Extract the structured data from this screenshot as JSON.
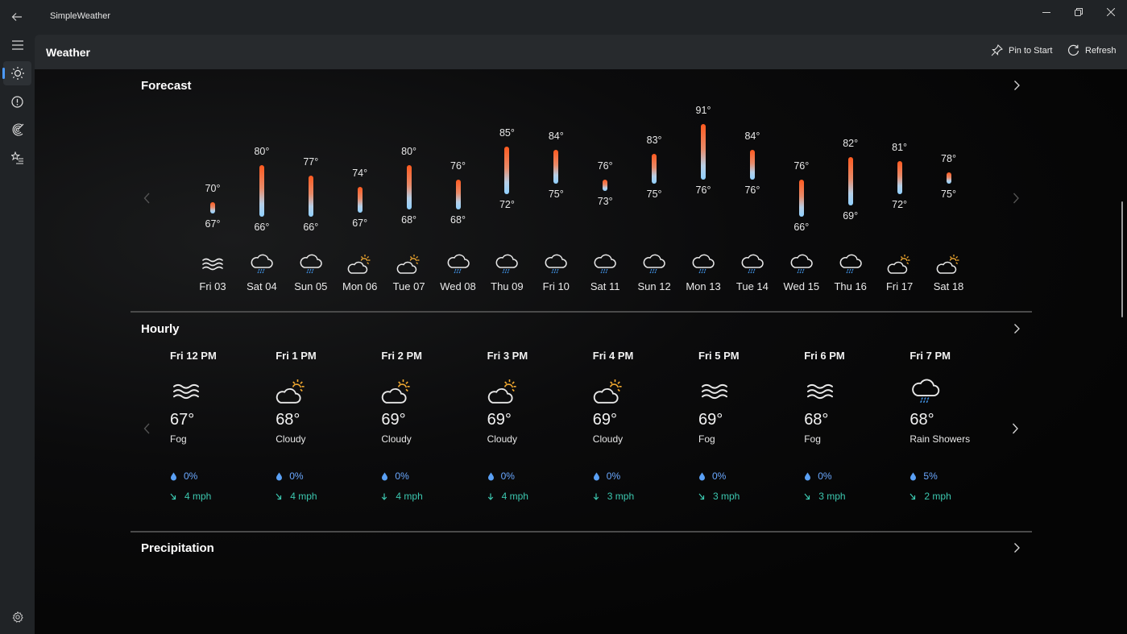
{
  "window": {
    "app_title": "SimpleWeather",
    "controls": [
      "minimize",
      "restore",
      "close"
    ]
  },
  "nav": {
    "items": [
      {
        "name": "menu",
        "icon": "hamburger-icon"
      },
      {
        "name": "weather",
        "icon": "sun-icon",
        "active": true
      },
      {
        "name": "alerts",
        "icon": "alert-icon"
      },
      {
        "name": "radar",
        "icon": "radar-icon"
      },
      {
        "name": "locations",
        "icon": "star-list-icon"
      },
      {
        "name": "settings",
        "icon": "gear-icon"
      }
    ]
  },
  "header": {
    "title": "Weather",
    "pin_label": "Pin to Start",
    "refresh_label": "Refresh"
  },
  "forecast": {
    "title": "Forecast",
    "days": [
      {
        "label": "Fri 03",
        "hi": "70°",
        "lo": "67°",
        "icon": "fog"
      },
      {
        "label": "Sat 04",
        "hi": "80°",
        "lo": "66°",
        "icon": "rain"
      },
      {
        "label": "Sun 05",
        "hi": "77°",
        "lo": "66°",
        "icon": "rain"
      },
      {
        "label": "Mon 06",
        "hi": "74°",
        "lo": "67°",
        "icon": "partly-cloudy"
      },
      {
        "label": "Tue 07",
        "hi": "80°",
        "lo": "68°",
        "icon": "partly-cloudy"
      },
      {
        "label": "Wed 08",
        "hi": "76°",
        "lo": "68°",
        "icon": "rain"
      },
      {
        "label": "Thu 09",
        "hi": "85°",
        "lo": "72°",
        "icon": "rain"
      },
      {
        "label": "Fri 10",
        "hi": "84°",
        "lo": "75°",
        "icon": "rain"
      },
      {
        "label": "Sat 11",
        "hi": "76°",
        "lo": "73°",
        "icon": "rain"
      },
      {
        "label": "Sun 12",
        "hi": "83°",
        "lo": "75°",
        "icon": "rain"
      },
      {
        "label": "Mon 13",
        "hi": "91°",
        "lo": "76°",
        "icon": "rain"
      },
      {
        "label": "Tue 14",
        "hi": "84°",
        "lo": "76°",
        "icon": "rain"
      },
      {
        "label": "Wed 15",
        "hi": "76°",
        "lo": "66°",
        "icon": "rain"
      },
      {
        "label": "Thu 16",
        "hi": "82°",
        "lo": "69°",
        "icon": "rain"
      },
      {
        "label": "Fri 17",
        "hi": "81°",
        "lo": "72°",
        "icon": "partly-cloudy"
      },
      {
        "label": "Sat 18",
        "hi": "78°",
        "lo": "75°",
        "icon": "partly-cloudy"
      }
    ]
  },
  "hourly": {
    "title": "Hourly",
    "hours": [
      {
        "time": "Fri 12 PM",
        "temp": "67°",
        "condition": "Fog",
        "icon": "fog",
        "precip": "0%",
        "wind": "4 mph",
        "wind_dir": "se"
      },
      {
        "time": "Fri 1 PM",
        "temp": "68°",
        "condition": "Cloudy",
        "icon": "partly-cloudy",
        "precip": "0%",
        "wind": "4 mph",
        "wind_dir": "se"
      },
      {
        "time": "Fri 2 PM",
        "temp": "69°",
        "condition": "Cloudy",
        "icon": "partly-cloudy",
        "precip": "0%",
        "wind": "4 mph",
        "wind_dir": "s"
      },
      {
        "time": "Fri 3 PM",
        "temp": "69°",
        "condition": "Cloudy",
        "icon": "partly-cloudy",
        "precip": "0%",
        "wind": "4 mph",
        "wind_dir": "s"
      },
      {
        "time": "Fri 4 PM",
        "temp": "69°",
        "condition": "Cloudy",
        "icon": "partly-cloudy",
        "precip": "0%",
        "wind": "3 mph",
        "wind_dir": "s"
      },
      {
        "time": "Fri 5 PM",
        "temp": "69°",
        "condition": "Fog",
        "icon": "fog",
        "precip": "0%",
        "wind": "3 mph",
        "wind_dir": "se"
      },
      {
        "time": "Fri 6 PM",
        "temp": "68°",
        "condition": "Fog",
        "icon": "fog",
        "precip": "0%",
        "wind": "3 mph",
        "wind_dir": "se"
      },
      {
        "time": "Fri 7 PM",
        "temp": "68°",
        "condition": "Rain Showers",
        "icon": "rain",
        "precip": "5%",
        "wind": "2 mph",
        "wind_dir": "se"
      }
    ]
  },
  "precipitation": {
    "title": "Precipitation"
  },
  "colors": {
    "accent": "#4c9aff",
    "bar_hot": "#ff5a1f",
    "bar_cold": "#8fd0ff",
    "precip_text": "#6aa8ff",
    "wind_text": "#3cc8b0",
    "sun": "#f0a830"
  }
}
